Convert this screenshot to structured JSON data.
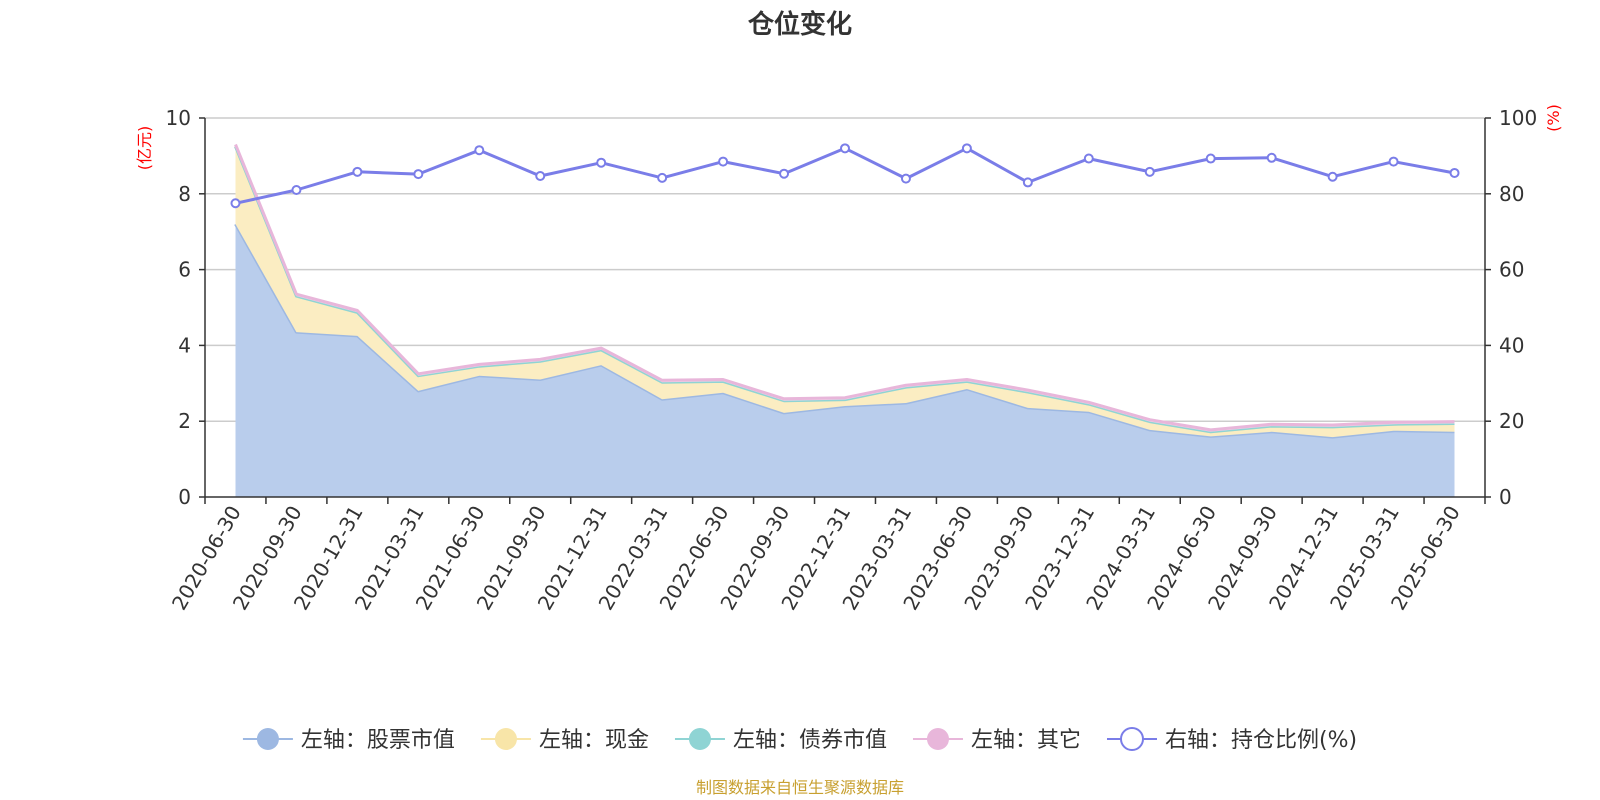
{
  "chart_data": {
    "type": "area",
    "title": "仓位变化",
    "left_unit": "(亿元)",
    "right_unit": "(%)",
    "left_ylim": [
      0,
      10
    ],
    "right_ylim": [
      0,
      100
    ],
    "left_ticks": [
      "0",
      "2",
      "4",
      "6",
      "8",
      "10"
    ],
    "right_ticks": [
      "0",
      "20",
      "40",
      "60",
      "80",
      "100"
    ],
    "grid": true,
    "legend_position": "bottom",
    "categories": [
      "2020-06-30",
      "2020-09-30",
      "2020-12-31",
      "2021-03-31",
      "2021-06-30",
      "2021-09-30",
      "2021-12-31",
      "2022-03-31",
      "2022-06-30",
      "2022-09-30",
      "2022-12-31",
      "2023-03-31",
      "2023-06-30",
      "2023-09-30",
      "2023-12-31",
      "2024-03-31",
      "2024-06-30",
      "2024-09-30",
      "2024-12-31",
      "2025-03-31",
      "2025-06-30"
    ],
    "series": [
      {
        "name": "左轴：股票市值",
        "axis": "left",
        "color": "#9db8e2",
        "fill": "#b9cdec",
        "stack": true,
        "values": [
          7.2,
          4.35,
          4.25,
          2.8,
          3.2,
          3.1,
          3.48,
          2.58,
          2.75,
          2.22,
          2.4,
          2.48,
          2.85,
          2.35,
          2.25,
          1.77,
          1.6,
          1.72,
          1.58,
          1.75,
          1.72
        ]
      },
      {
        "name": "左轴：现金",
        "axis": "left",
        "color": "#f8e5a8",
        "fill": "#fbedc2",
        "stack": true,
        "values": [
          2.05,
          0.95,
          0.62,
          0.4,
          0.25,
          0.48,
          0.4,
          0.45,
          0.3,
          0.32,
          0.17,
          0.42,
          0.2,
          0.42,
          0.2,
          0.22,
          0.12,
          0.15,
          0.27,
          0.17,
          0.22
        ]
      },
      {
        "name": "左轴：债券市值",
        "axis": "left",
        "color": "#8fd4d4",
        "fill": "#c6ecec",
        "stack": true,
        "values": [
          0,
          0,
          0,
          0,
          0,
          0,
          0,
          0,
          0,
          0,
          0,
          0,
          0,
          0,
          0,
          0,
          0,
          0,
          0,
          0,
          0
        ]
      },
      {
        "name": "左轴：其它",
        "axis": "left",
        "color": "#e8b6da",
        "fill": "#f3d6ea",
        "stack": true,
        "values": [
          0.05,
          0.05,
          0.05,
          0.05,
          0.05,
          0.05,
          0.05,
          0.05,
          0.05,
          0.05,
          0.05,
          0.05,
          0.05,
          0.05,
          0.05,
          0.05,
          0.05,
          0.05,
          0.05,
          0.05,
          0.05
        ]
      },
      {
        "name": "右轴：持仓比例(%)",
        "axis": "right",
        "color": "#7a7de8",
        "stack": false,
        "values": [
          77.5,
          81,
          85.8,
          85.2,
          91.5,
          84.7,
          88.2,
          84.2,
          88.5,
          85.3,
          92,
          84,
          92,
          83,
          89.3,
          85.8,
          89.3,
          89.5,
          84.5,
          88.5,
          85.5
        ]
      }
    ]
  },
  "footer": {
    "source": "制图数据来自恒生聚源数据库"
  }
}
